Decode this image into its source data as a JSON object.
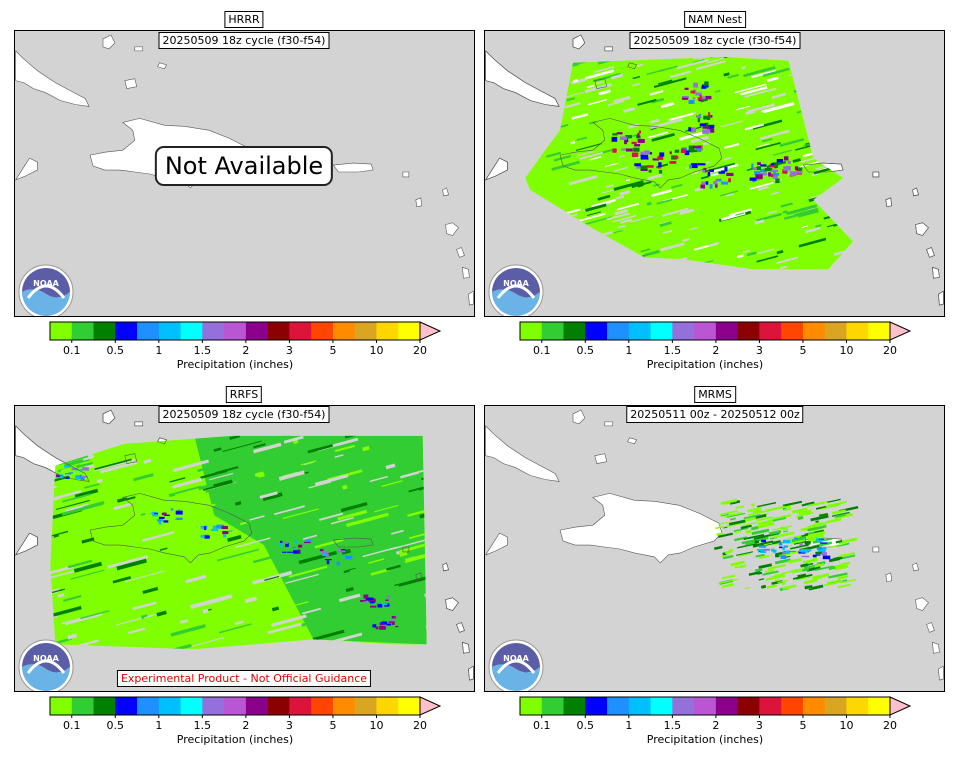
{
  "panels": [
    {
      "id": "hrrr",
      "title": "HRRR",
      "subtitle": "20250509 18z cycle (f30-f54)",
      "status": "Not Available",
      "footer": ""
    },
    {
      "id": "namnest",
      "title": "NAM Nest",
      "subtitle": "20250509 18z cycle (f30-f54)",
      "status": "",
      "footer": ""
    },
    {
      "id": "rrfs",
      "title": "RRFS",
      "subtitle": "20250509 18z cycle (f30-f54)",
      "status": "",
      "footer": "Experimental Product - Not Official Guidance"
    },
    {
      "id": "mrms",
      "title": "MRMS",
      "subtitle": "20250511 00z - 20250512 00z",
      "status": "",
      "footer": ""
    }
  ],
  "colorbar": {
    "label": "Precipitation (inches)",
    "ticks": [
      "0.1",
      "0.5",
      "1",
      "1.5",
      "2",
      "3",
      "5",
      "10",
      "20"
    ],
    "colors": [
      "#7fff00",
      "#32cd32",
      "#008000",
      "#0000ff",
      "#1e90ff",
      "#00bfff",
      "#00ffff",
      "#9370db",
      "#ba55d3",
      "#8b008b",
      "#8b0000",
      "#dc143c",
      "#ff4500",
      "#ff8c00",
      "#daa520",
      "#ffd700",
      "#ffff00"
    ],
    "extend_color": "#ffc0cb"
  },
  "logo": {
    "text": "NOAA"
  },
  "colors": {
    "land": "#ffffff",
    "ocean": "#d3d3d3"
  }
}
